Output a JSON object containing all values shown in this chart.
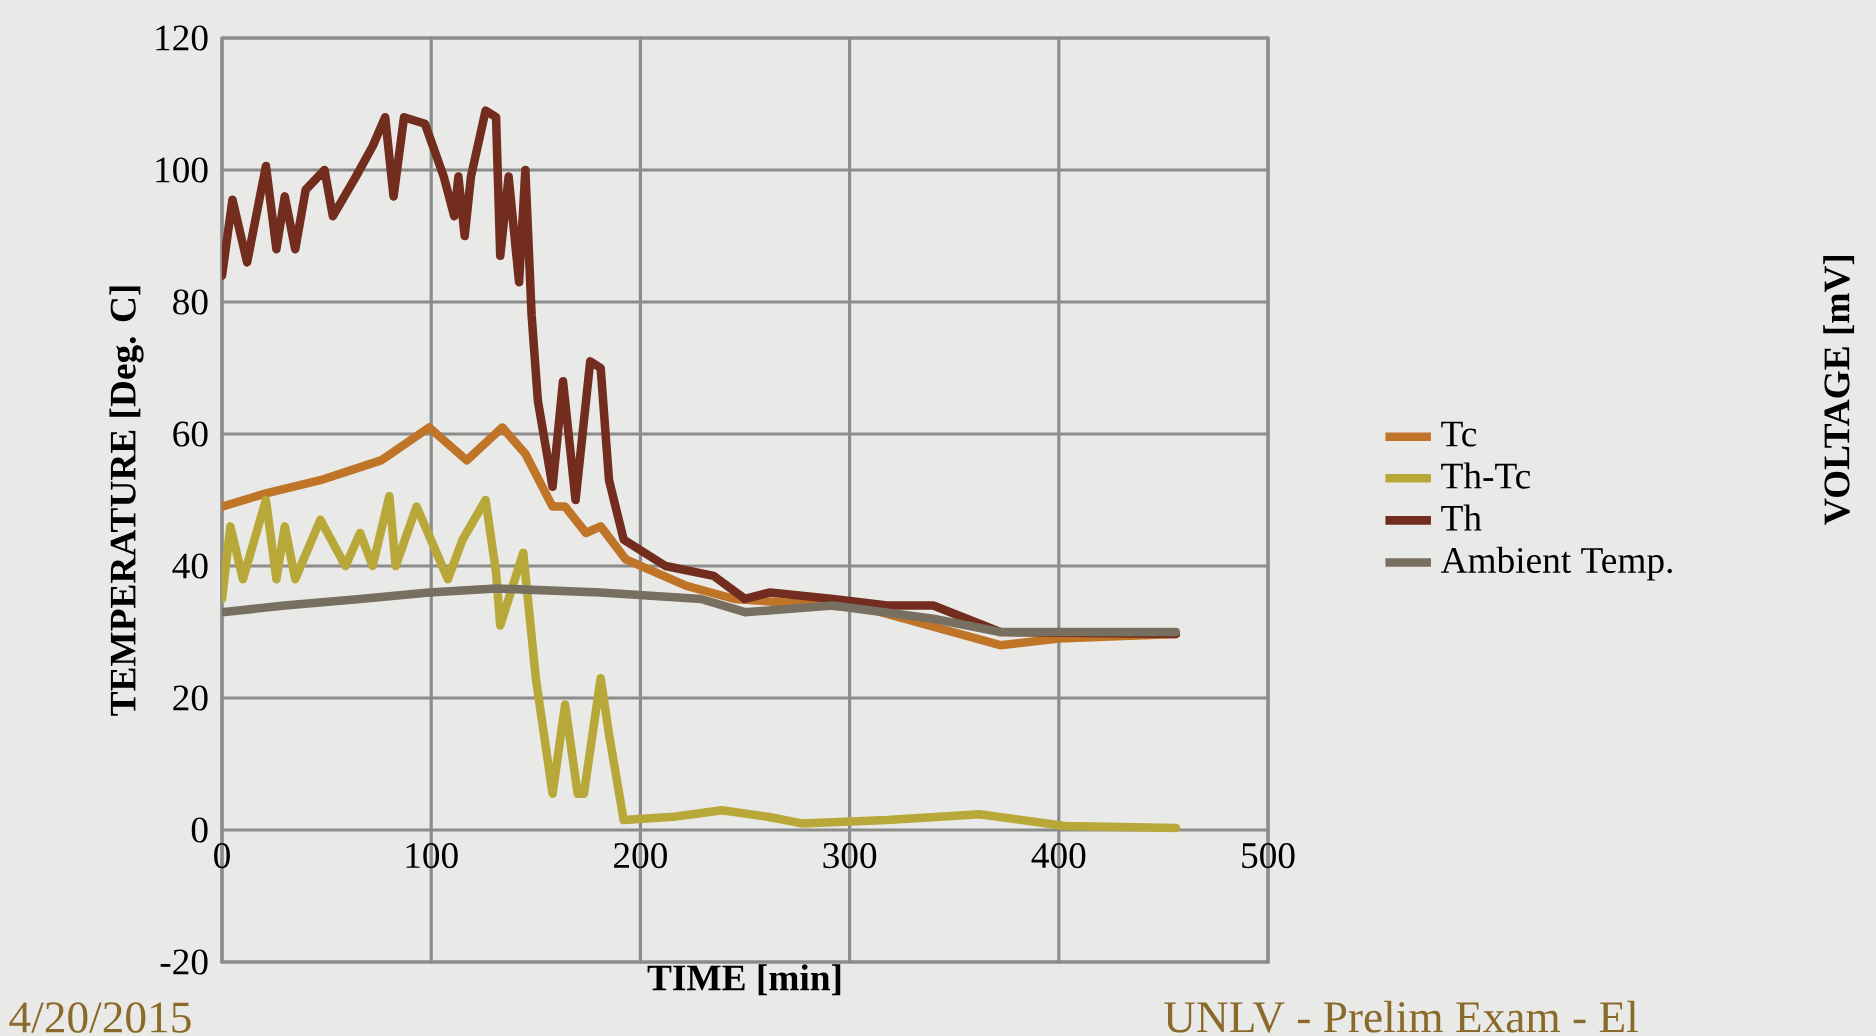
{
  "chart_data": {
    "type": "line",
    "xlabel": "TIME [min]",
    "ylabel": "TEMPERATURE [Deg. C]",
    "xlim": [
      0,
      500
    ],
    "xticks": [
      0,
      100,
      200,
      300,
      400,
      500
    ],
    "ylim": [
      -20,
      120
    ],
    "yticks": [
      -20,
      0,
      20,
      40,
      60,
      80,
      100,
      120
    ],
    "grid": true,
    "legend": "right",
    "line_style": "solid",
    "marker": "none",
    "series": [
      {
        "name": "Tc",
        "color": "#c07428",
        "x": [
          0,
          21,
          47,
          76,
          99,
          117,
          134,
          145,
          158,
          164,
          174,
          181,
          193,
          222,
          245,
          308,
          372,
          400,
          456
        ],
        "values": [
          49,
          51,
          53,
          56,
          61,
          56,
          61,
          57,
          49,
          49,
          45,
          46,
          41,
          37,
          35,
          33.6,
          28,
          29,
          29.7
        ]
      },
      {
        "name": "Th-Tc",
        "color": "#b8a83a",
        "x": [
          0,
          4,
          10,
          21,
          26,
          30,
          35,
          47,
          59,
          66,
          72,
          80,
          83,
          93,
          108,
          115,
          126,
          131,
          133,
          144,
          150,
          158,
          164,
          170,
          173,
          181,
          185,
          192,
          216,
          239,
          261,
          277,
          318,
          362,
          403,
          456
        ],
        "values": [
          35,
          46,
          38,
          50,
          38,
          46,
          38,
          47,
          40,
          45,
          40,
          50.6,
          40,
          49,
          38,
          44,
          50,
          39,
          31,
          42,
          23,
          5.5,
          19,
          5.5,
          5.5,
          23,
          14.5,
          1.5,
          2,
          3,
          2,
          1,
          1.5,
          2.4,
          0.6,
          0.3
        ]
      },
      {
        "name": "Th",
        "color": "#722d1e",
        "x": [
          0,
          5,
          12,
          21,
          26,
          30,
          35,
          40,
          49,
          53,
          64,
          72,
          78,
          82,
          87,
          97,
          106,
          111,
          113,
          116,
          119,
          126,
          131,
          133,
          137,
          142,
          145,
          148,
          151,
          158,
          163,
          169,
          176,
          181,
          185,
          192,
          212,
          235,
          250,
          262,
          292,
          318,
          340,
          372,
          456
        ],
        "values": [
          84,
          95.5,
          86,
          100.6,
          88,
          96,
          88,
          97,
          100,
          93,
          99,
          103.6,
          108,
          96,
          108,
          107,
          99,
          93,
          99,
          90,
          99,
          109,
          108,
          87,
          99,
          83,
          100,
          78,
          65,
          52,
          68,
          50,
          71,
          70,
          53,
          44,
          40,
          38.5,
          35,
          36,
          35,
          34,
          34,
          30,
          29.7
        ]
      },
      {
        "name": "Ambient Temp.",
        "color": "#777060",
        "x": [
          0,
          30,
          66,
          99,
          131,
          181,
          229,
          250,
          292,
          340,
          372,
          456
        ],
        "values": [
          33,
          34,
          35,
          36,
          36.6,
          36,
          35,
          33,
          34,
          32,
          30,
          30
        ]
      }
    ],
    "annotations": [
      "VOLTAGE [mV]",
      "4/20/2015",
      "UNLV - Prelim Exam - El"
    ]
  }
}
